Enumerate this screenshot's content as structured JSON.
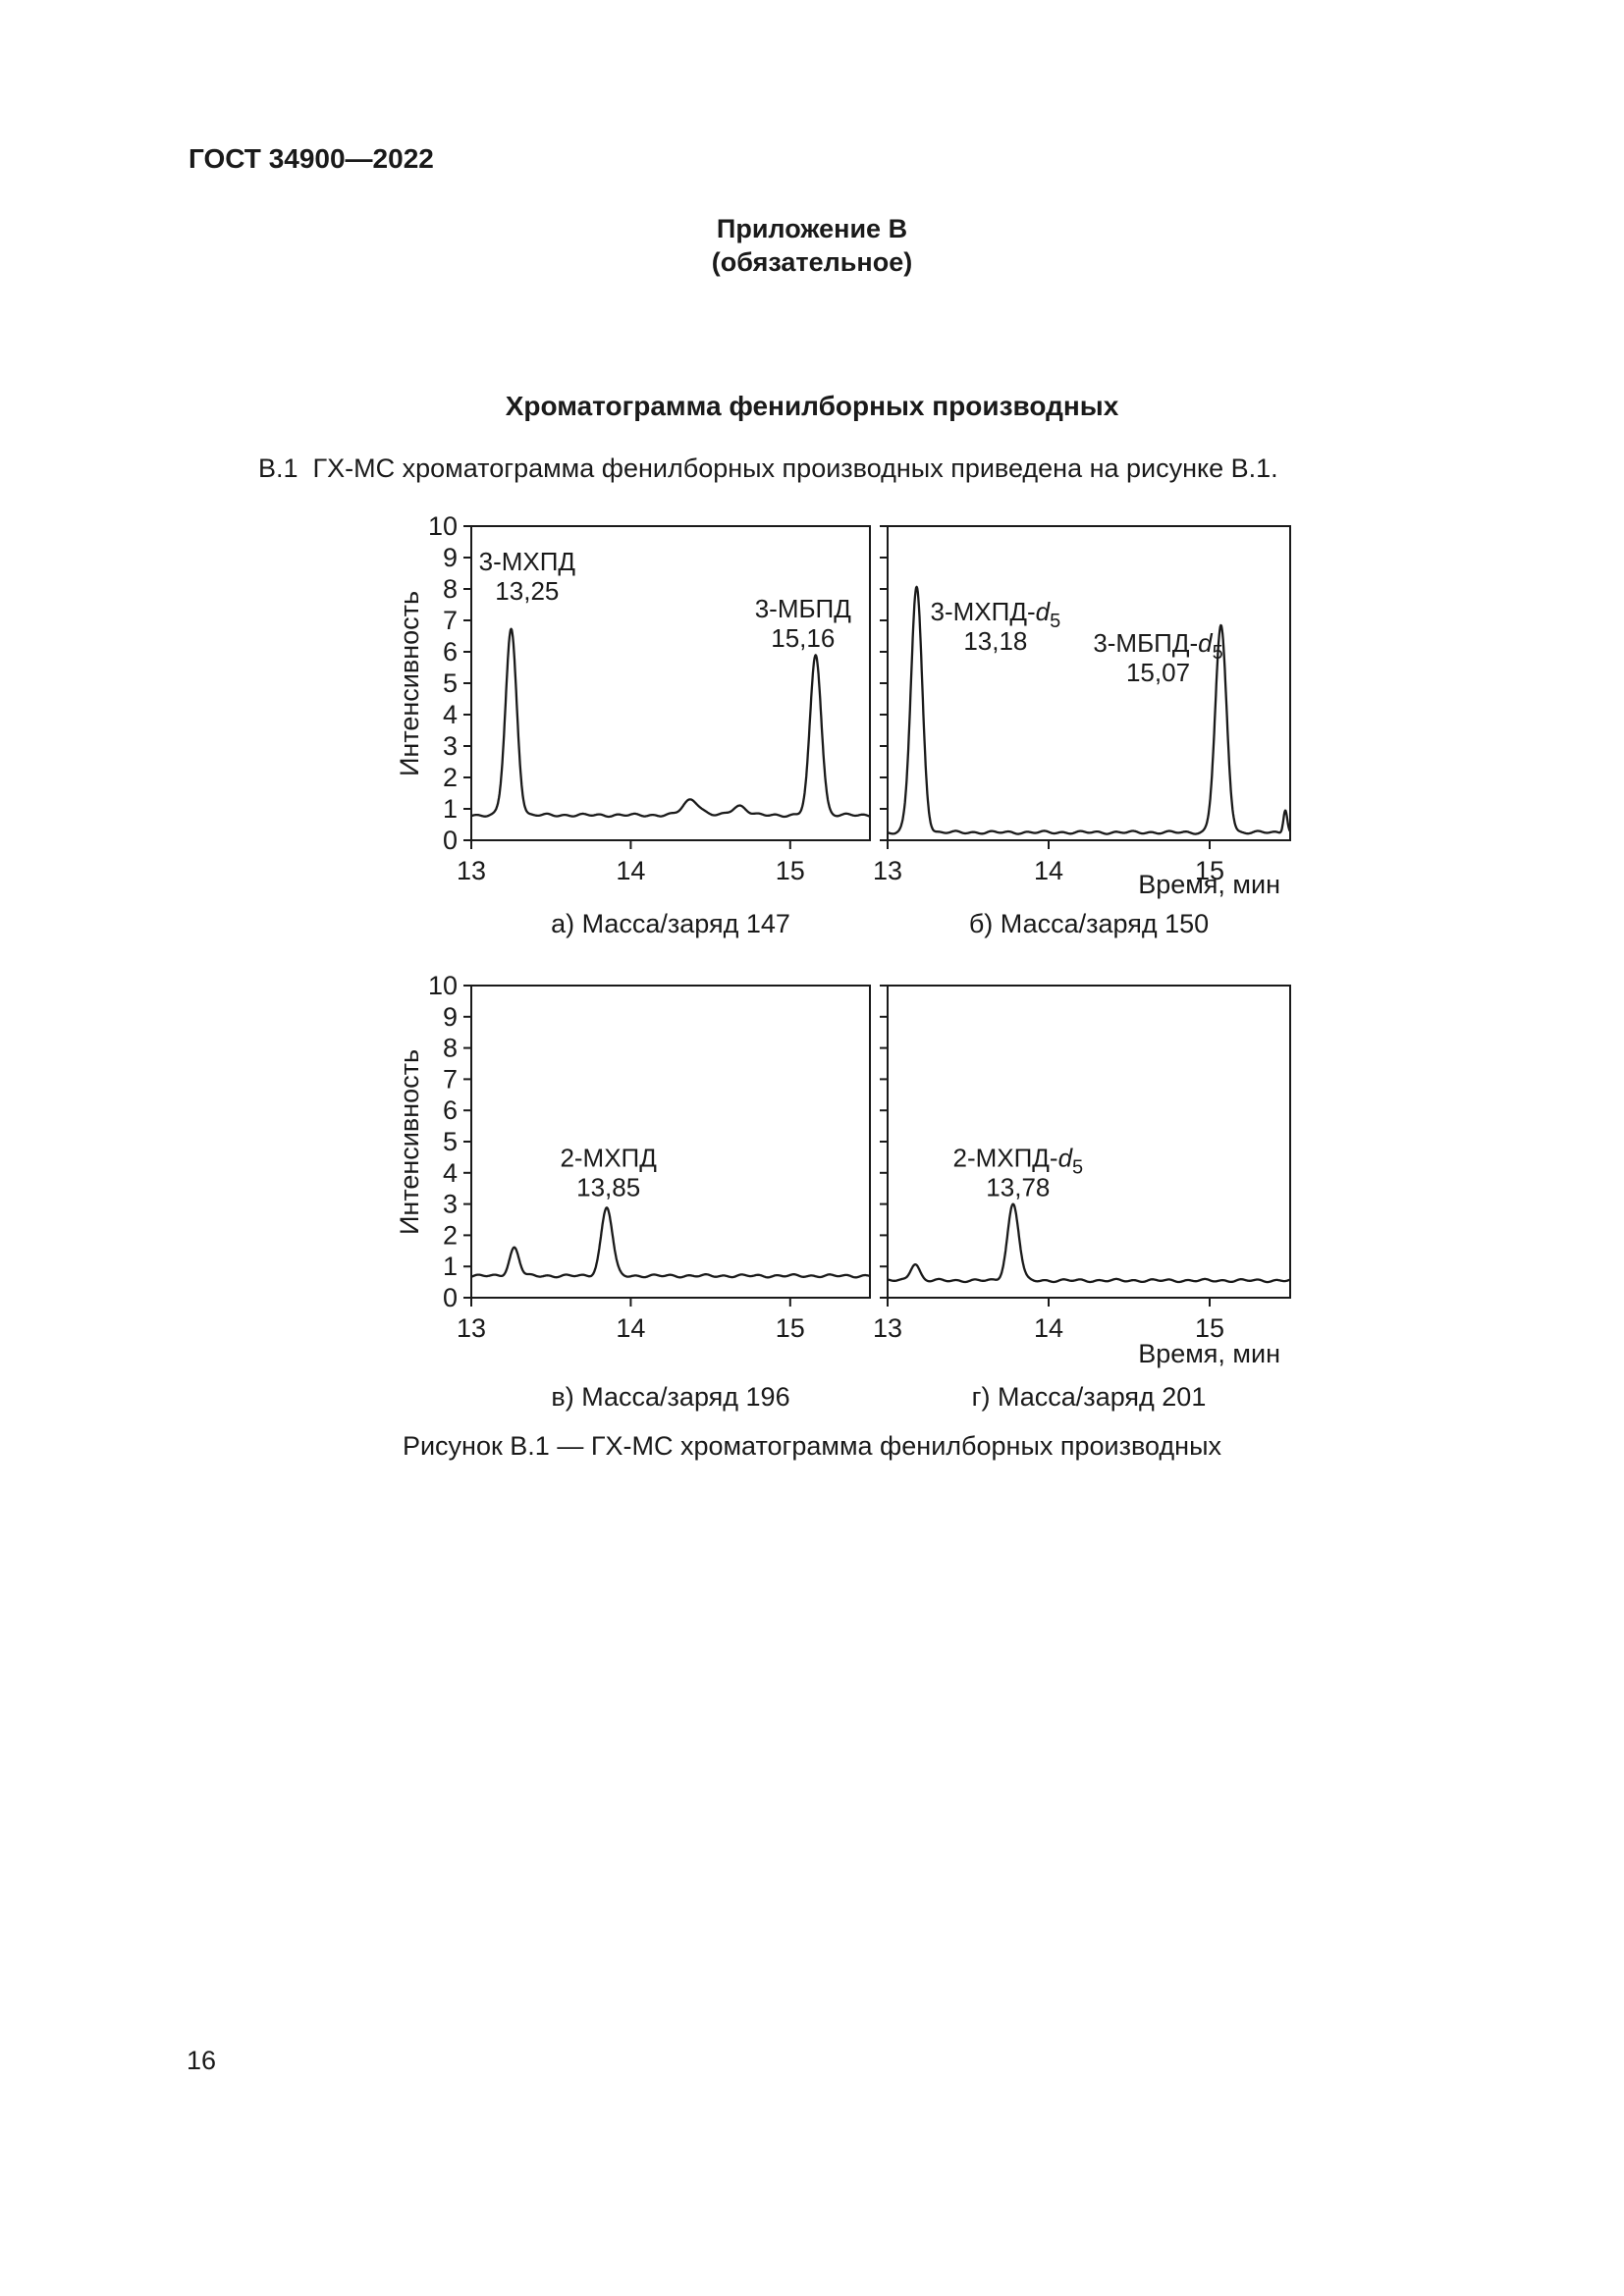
{
  "header": {
    "standard": "ГОСТ 34900—2022",
    "annex_title": "Приложение В",
    "annex_subtitle": "(обязательное)",
    "section_title": "Хроматограмма фенилборных производных"
  },
  "body": {
    "paragraph": "В.1  ГХ-МС хроматограмма фенилборных производных приведена на рисунке В.1."
  },
  "figure": {
    "caption": "Рисунок В.1 — ГХ-МС хроматограмма фенилборных производных"
  },
  "footer": {
    "page_number": "16"
  },
  "chart_data": [
    {
      "id": "a",
      "type": "line",
      "caption": "а) Масса/заряд 147",
      "ylabel": "Интенсивность",
      "xlabel": "",
      "xlim": [
        13,
        15.5
      ],
      "ylim": [
        0,
        10
      ],
      "xticks": [
        13,
        14,
        15
      ],
      "yticks": [
        0,
        1,
        2,
        3,
        4,
        5,
        6,
        7,
        8,
        9,
        10
      ],
      "show_ytick_labels": true,
      "baseline": 0.8,
      "peaks": [
        {
          "name": "3-МХПД",
          "rt": 13.25,
          "height": 5.9,
          "sigma": 0.035
        },
        {
          "name": "3-МБПД",
          "rt": 15.16,
          "height": 5.1,
          "sigma": 0.035
        }
      ],
      "bumps": [
        {
          "rt": 14.38,
          "height": 0.5,
          "sigma": 0.05
        },
        {
          "rt": 14.68,
          "height": 0.3,
          "sigma": 0.045
        }
      ],
      "annotations": [
        {
          "x": 13.35,
          "y": 8.6,
          "lines": [
            [
              {
                "t": "3-МХПД"
              }
            ],
            [
              {
                "t": "13,25"
              }
            ]
          ]
        },
        {
          "x": 15.08,
          "y": 7.1,
          "lines": [
            [
              {
                "t": "3-МБПД"
              }
            ],
            [
              {
                "t": "15,16"
              }
            ]
          ]
        }
      ]
    },
    {
      "id": "b",
      "type": "line",
      "caption": "б) Масса/заряд 150",
      "ylabel": "",
      "xlabel": "Время, мин",
      "xlim": [
        13,
        15.5
      ],
      "ylim": [
        0,
        10
      ],
      "xticks": [
        13,
        14,
        15
      ],
      "yticks": [
        0,
        1,
        2,
        3,
        4,
        5,
        6,
        7,
        8,
        9,
        10
      ],
      "show_ytick_labels": false,
      "baseline": 0.25,
      "peaks": [
        {
          "name": "3-МХПД-d5",
          "rt": 13.18,
          "height": 7.8,
          "sigma": 0.035
        },
        {
          "name": "3-МБПД-d5",
          "rt": 15.07,
          "height": 6.55,
          "sigma": 0.035
        }
      ],
      "bumps": [
        {
          "rt": 15.47,
          "height": 0.75,
          "sigma": 0.012
        }
      ],
      "annotations": [
        {
          "x": 13.67,
          "y": 7.0,
          "lines": [
            [
              {
                "t": "3-МХПД-"
              },
              {
                "t": "d",
                "i": true
              },
              {
                "t": "5",
                "s": true
              }
            ],
            [
              {
                "t": "13,18"
              }
            ]
          ]
        },
        {
          "x": 14.68,
          "y": 6.0,
          "lines": [
            [
              {
                "t": "3-МБПД-"
              },
              {
                "t": "d",
                "i": true
              },
              {
                "t": "5",
                "s": true
              }
            ],
            [
              {
                "t": "15,07"
              }
            ]
          ]
        }
      ]
    },
    {
      "id": "v",
      "type": "line",
      "caption": "в) Масса/заряд 196",
      "ylabel": "Интенсивность",
      "xlabel": "",
      "xlim": [
        13,
        15.5
      ],
      "ylim": [
        0,
        10
      ],
      "xticks": [
        13,
        14,
        15
      ],
      "yticks": [
        0,
        1,
        2,
        3,
        4,
        5,
        6,
        7,
        8,
        9,
        10
      ],
      "show_ytick_labels": true,
      "baseline": 0.7,
      "peaks": [
        {
          "name": "2-МХПД",
          "rt": 13.85,
          "height": 2.2,
          "sigma": 0.035
        }
      ],
      "bumps": [
        {
          "rt": 13.27,
          "height": 0.9,
          "sigma": 0.03
        }
      ],
      "annotations": [
        {
          "x": 13.86,
          "y": 4.2,
          "lines": [
            [
              {
                "t": "2-МХПД"
              }
            ],
            [
              {
                "t": "13,85"
              }
            ]
          ]
        }
      ]
    },
    {
      "id": "g",
      "type": "line",
      "caption": "г) Масса/заряд 201",
      "ylabel": "",
      "xlabel": "Время, мин",
      "xlim": [
        13,
        15.5
      ],
      "ylim": [
        0,
        10
      ],
      "xticks": [
        13,
        14,
        15
      ],
      "yticks": [
        0,
        1,
        2,
        3,
        4,
        5,
        6,
        7,
        8,
        9,
        10
      ],
      "show_ytick_labels": false,
      "baseline": 0.55,
      "peaks": [
        {
          "name": "2-МХПД-d5",
          "rt": 13.78,
          "height": 2.45,
          "sigma": 0.035
        }
      ],
      "bumps": [
        {
          "rt": 13.17,
          "height": 0.55,
          "sigma": 0.028
        }
      ],
      "annotations": [
        {
          "x": 13.81,
          "y": 4.2,
          "lines": [
            [
              {
                "t": "2-МХПД-"
              },
              {
                "t": "d",
                "i": true
              },
              {
                "t": "5",
                "s": true
              }
            ],
            [
              {
                "t": "13,78"
              }
            ]
          ]
        }
      ]
    }
  ]
}
